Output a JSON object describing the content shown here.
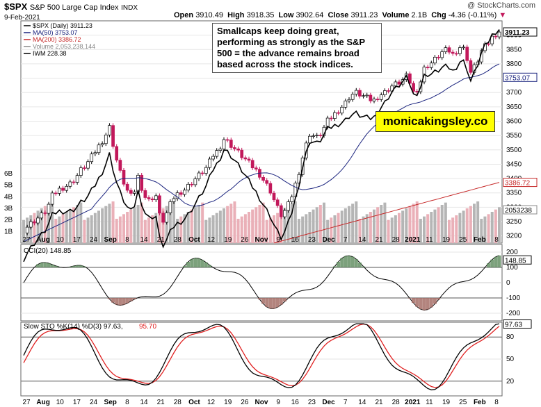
{
  "header": {
    "symbol": "$SPX",
    "name": "S&P 500 Large Cap Index",
    "exchange": "INDX",
    "date": "9-Feb-2021",
    "watermark": "@ StockCharts.com",
    "open_label": "Open",
    "open": "3910.49",
    "high_label": "High",
    "high": "3918.35",
    "low_label": "Low",
    "low": "3902.64",
    "close_label": "Close",
    "close": "3911.23",
    "volume_label": "Volume",
    "volume": "2.1B",
    "chg_label": "Chg",
    "chg": "-4.36 (-0.11%)"
  },
  "legend": [
    {
      "text": "$SPX (Daily) 3911.23",
      "color": "#000000"
    },
    {
      "text": "MA(50) 3753.07",
      "color": "#1a237e"
    },
    {
      "text": "MA(200) 3386.72",
      "color": "#c62828"
    },
    {
      "text": "Volume 2,053,238,144",
      "color": "#888888"
    },
    {
      "text": "IWM 228.38",
      "color": "#000000"
    }
  ],
  "annotation": "Smallcaps keep doing great, performing as strongly as the S&P 500 = the advance remains broad based across the stock indices.",
  "brand": "monicakingsley.co",
  "colors": {
    "up": "#ffffff",
    "down": "#c2185b",
    "ma50": "#1a237e",
    "ma200": "#c62828",
    "vol_up": "#b5b5b5",
    "vol_down": "#eab0b8",
    "cci_fill": "#5b8a5b",
    "cci_neg_fill": "#a0655e",
    "k": "#000000",
    "d": "#e02020",
    "brand_bg": "#ffff00"
  },
  "chart_data": [
    {
      "type": "candlestick",
      "title": "$SPX (Daily)",
      "ylim": [
        3175,
        3950
      ],
      "yticks": [
        3200,
        3250,
        3300,
        3350,
        3400,
        3450,
        3500,
        3550,
        3600,
        3650,
        3700,
        3750,
        3800,
        3850,
        3900
      ],
      "volume_ticks": [
        "1B",
        "2B",
        "3B",
        "4B",
        "5B",
        "6B"
      ],
      "last_labels": {
        "close": "3911.23",
        "ma50": "3753.07",
        "ma200": "3386.72",
        "volume": "2053238"
      },
      "x_ticks": [
        "27",
        "Aug",
        "10",
        "17",
        "24",
        "Sep",
        "8",
        "14",
        "21",
        "28",
        "Oct",
        "12",
        "19",
        "26",
        "Nov",
        "9",
        "16",
        "23",
        "Dec",
        "7",
        "14",
        "21",
        "28",
        "2021",
        "11",
        "19",
        "25",
        "Feb",
        "8"
      ],
      "series": [
        {
          "name": "MA(50)",
          "last": 3753.07
        },
        {
          "name": "MA(200)",
          "last": 3386.72
        },
        {
          "name": "IWM",
          "last": 228.38
        }
      ],
      "notes": "Anchor points below are approximate readings of the close path; intermediate bars are interpolated.",
      "close_anchors": [
        3220,
        3240,
        3255,
        3270,
        3290,
        3340,
        3360,
        3370,
        3380,
        3400,
        3430,
        3450,
        3480,
        3510,
        3540,
        3580,
        3480,
        3410,
        3360,
        3330,
        3410,
        3340,
        3320,
        3350,
        3240,
        3280,
        3330,
        3350,
        3360,
        3380,
        3400,
        3420,
        3440,
        3480,
        3500,
        3540,
        3520,
        3500,
        3480,
        3460,
        3440,
        3420,
        3390,
        3360,
        3310,
        3270,
        3300,
        3350,
        3420,
        3500,
        3560,
        3540,
        3560,
        3600,
        3620,
        3640,
        3660,
        3690,
        3700,
        3690,
        3680,
        3670,
        3690,
        3700,
        3720,
        3730,
        3740,
        3760,
        3700,
        3720,
        3790,
        3800,
        3820,
        3840,
        3850,
        3830,
        3860,
        3850,
        3770,
        3800,
        3850,
        3870,
        3900,
        3911
      ]
    },
    {
      "type": "line",
      "title": "CCI(20)",
      "value": "148.85",
      "ylim": [
        -250,
        250
      ],
      "yticks": [
        200,
        100,
        0,
        -100,
        -200
      ],
      "reference_lines": [
        100,
        -100
      ]
    },
    {
      "type": "line",
      "title": "Slow STO %K(14) %D(3)",
      "k_value": "97.63",
      "d_value": "95.70",
      "ylim": [
        0,
        100
      ],
      "yticks": [
        80,
        50,
        20
      ],
      "reference_lines": [
        80,
        20
      ]
    }
  ]
}
